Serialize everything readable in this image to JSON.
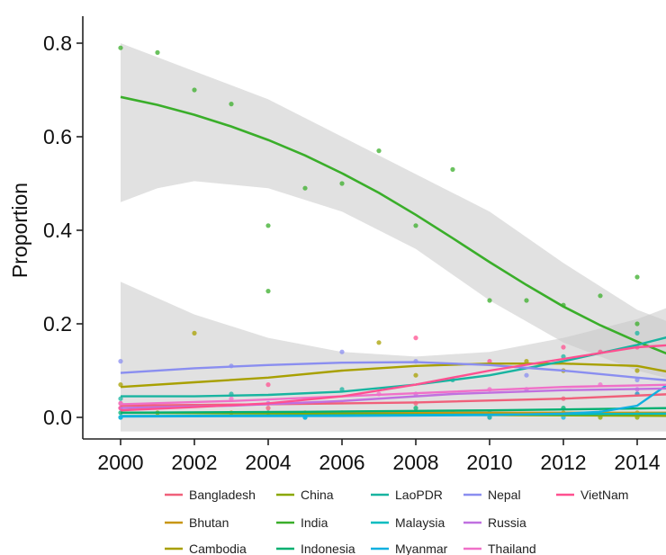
{
  "chart_data": {
    "type": "scatter",
    "title": "",
    "xlabel": "",
    "ylabel": "Proportion",
    "xlim": [
      1999.0,
      2015.0
    ],
    "ylim": [
      -0.05,
      0.86
    ],
    "x_ticks": [
      2000,
      2002,
      2004,
      2006,
      2008,
      2010,
      2012,
      2014
    ],
    "y_ticks": [
      0.0,
      0.2,
      0.4,
      0.6,
      0.8
    ],
    "y_tick_labels": [
      "0.0",
      "0.2",
      "0.4",
      "0.6",
      "0.8"
    ],
    "grid": false,
    "legend_position": "bottom",
    "smoothing": "loess with confidence band",
    "series": [
      {
        "name": "Bangladesh",
        "color": "#f0607a",
        "points": [
          [
            2000,
            0.03
          ],
          [
            2004,
            0.02
          ],
          [
            2008,
            0.03
          ],
          [
            2012,
            0.04
          ],
          [
            2014,
            0.05
          ]
        ],
        "fit": [
          [
            2000,
            0.025
          ],
          [
            2004,
            0.028
          ],
          [
            2008,
            0.032
          ],
          [
            2012,
            0.04
          ],
          [
            2015,
            0.05
          ]
        ]
      },
      {
        "name": "Bhutan",
        "color": "#c89612",
        "points": [
          [
            2003,
            0.01
          ],
          [
            2006,
            0.01
          ],
          [
            2009,
            0.01
          ],
          [
            2012,
            0.01
          ],
          [
            2014,
            0.01
          ]
        ],
        "fit": [
          [
            2000,
            0.01
          ],
          [
            2005,
            0.01
          ],
          [
            2010,
            0.01
          ],
          [
            2015,
            0.01
          ]
        ]
      },
      {
        "name": "Cambodia",
        "color": "#a8a000",
        "points": [
          [
            2000,
            0.07
          ],
          [
            2002,
            0.18
          ],
          [
            2007,
            0.16
          ],
          [
            2008,
            0.09
          ],
          [
            2011,
            0.12
          ],
          [
            2012,
            0.1
          ],
          [
            2014,
            0.1
          ]
        ],
        "fit": [
          [
            2000,
            0.065
          ],
          [
            2002,
            0.075
          ],
          [
            2004,
            0.085
          ],
          [
            2006,
            0.1
          ],
          [
            2008,
            0.11
          ],
          [
            2010,
            0.115
          ],
          [
            2012,
            0.115
          ],
          [
            2014,
            0.11
          ],
          [
            2015,
            0.095
          ]
        ]
      },
      {
        "name": "China",
        "color": "#8aa800",
        "points": [
          [
            2001,
            0.01
          ],
          [
            2005,
            0.01
          ],
          [
            2010,
            0.0
          ],
          [
            2013,
            0.0
          ],
          [
            2014,
            0.0
          ]
        ],
        "fit": [
          [
            2000,
            0.01
          ],
          [
            2005,
            0.008
          ],
          [
            2010,
            0.005
          ],
          [
            2015,
            0.003
          ]
        ]
      },
      {
        "name": "India",
        "color": "#3aae2a",
        "points": [
          [
            2000,
            0.79
          ],
          [
            2001,
            0.78
          ],
          [
            2002,
            0.7
          ],
          [
            2003,
            0.67
          ],
          [
            2004,
            0.41
          ],
          [
            2004,
            0.27
          ],
          [
            2005,
            0.49
          ],
          [
            2006,
            0.5
          ],
          [
            2007,
            0.57
          ],
          [
            2008,
            0.41
          ],
          [
            2009,
            0.53
          ],
          [
            2010,
            0.25
          ],
          [
            2011,
            0.25
          ],
          [
            2012,
            0.24
          ],
          [
            2013,
            0.26
          ],
          [
            2014,
            0.3
          ],
          [
            2014,
            0.2
          ]
        ],
        "fit": [
          [
            2000,
            0.685
          ],
          [
            2001,
            0.668
          ],
          [
            2002,
            0.647
          ],
          [
            2003,
            0.622
          ],
          [
            2004,
            0.593
          ],
          [
            2005,
            0.56
          ],
          [
            2006,
            0.522
          ],
          [
            2007,
            0.48
          ],
          [
            2008,
            0.433
          ],
          [
            2009,
            0.383
          ],
          [
            2010,
            0.332
          ],
          [
            2011,
            0.283
          ],
          [
            2012,
            0.237
          ],
          [
            2013,
            0.197
          ],
          [
            2014,
            0.162
          ],
          [
            2015,
            0.13
          ]
        ]
      },
      {
        "name": "Indonesia",
        "color": "#00b070",
        "points": [
          [
            2000,
            0.01
          ],
          [
            2004,
            0.01
          ],
          [
            2008,
            0.02
          ],
          [
            2012,
            0.02
          ]
        ],
        "fit": [
          [
            2000,
            0.01
          ],
          [
            2005,
            0.012
          ],
          [
            2010,
            0.015
          ],
          [
            2015,
            0.02
          ]
        ]
      },
      {
        "name": "LaoPDR",
        "color": "#18b4a0",
        "points": [
          [
            2000,
            0.04
          ],
          [
            2003,
            0.05
          ],
          [
            2006,
            0.06
          ],
          [
            2009,
            0.08
          ],
          [
            2012,
            0.13
          ],
          [
            2014,
            0.18
          ]
        ],
        "fit": [
          [
            2000,
            0.045
          ],
          [
            2002,
            0.045
          ],
          [
            2004,
            0.048
          ],
          [
            2006,
            0.055
          ],
          [
            2008,
            0.07
          ],
          [
            2010,
            0.09
          ],
          [
            2012,
            0.12
          ],
          [
            2014,
            0.155
          ],
          [
            2015,
            0.175
          ]
        ]
      },
      {
        "name": "Malaysia",
        "color": "#00bcc0",
        "points": [
          [
            2000,
            0.0
          ],
          [
            2005,
            0.0
          ],
          [
            2010,
            0.01
          ],
          [
            2013,
            0.01
          ]
        ],
        "fit": [
          [
            2000,
            0.003
          ],
          [
            2005,
            0.004
          ],
          [
            2010,
            0.006
          ],
          [
            2015,
            0.008
          ]
        ]
      },
      {
        "name": "Myanmar",
        "color": "#10b0e0",
        "points": [
          [
            2000,
            0.0
          ],
          [
            2005,
            0.0
          ],
          [
            2010,
            0.0
          ],
          [
            2012,
            0.0
          ],
          [
            2014,
            0.05
          ]
        ],
        "fit": [
          [
            2000,
            0.002
          ],
          [
            2006,
            0.003
          ],
          [
            2010,
            0.005
          ],
          [
            2012,
            0.008
          ],
          [
            2013,
            0.012
          ],
          [
            2014,
            0.025
          ],
          [
            2015,
            0.08
          ]
        ]
      },
      {
        "name": "Nepal",
        "color": "#8a8ef0",
        "points": [
          [
            2000,
            0.12
          ],
          [
            2003,
            0.11
          ],
          [
            2006,
            0.14
          ],
          [
            2008,
            0.12
          ],
          [
            2011,
            0.09
          ],
          [
            2014,
            0.08
          ]
        ],
        "fit": [
          [
            2000,
            0.095
          ],
          [
            2002,
            0.105
          ],
          [
            2004,
            0.112
          ],
          [
            2006,
            0.117
          ],
          [
            2008,
            0.118
          ],
          [
            2010,
            0.112
          ],
          [
            2012,
            0.1
          ],
          [
            2014,
            0.085
          ],
          [
            2015,
            0.078
          ]
        ]
      },
      {
        "name": "Russia",
        "color": "#c070e0",
        "points": [
          [
            2000,
            0.02
          ],
          [
            2004,
            0.03
          ],
          [
            2008,
            0.05
          ],
          [
            2011,
            0.06
          ],
          [
            2014,
            0.06
          ]
        ],
        "fit": [
          [
            2000,
            0.02
          ],
          [
            2003,
            0.025
          ],
          [
            2006,
            0.035
          ],
          [
            2009,
            0.05
          ],
          [
            2012,
            0.058
          ],
          [
            2015,
            0.062
          ]
        ]
      },
      {
        "name": "Thailand",
        "color": "#f070c8",
        "points": [
          [
            2000,
            0.03
          ],
          [
            2003,
            0.04
          ],
          [
            2007,
            0.05
          ],
          [
            2010,
            0.06
          ],
          [
            2013,
            0.07
          ]
        ],
        "fit": [
          [
            2000,
            0.028
          ],
          [
            2003,
            0.035
          ],
          [
            2006,
            0.045
          ],
          [
            2009,
            0.055
          ],
          [
            2012,
            0.065
          ],
          [
            2015,
            0.07
          ]
        ]
      },
      {
        "name": "VietNam",
        "color": "#ff5090",
        "points": [
          [
            2000,
            0.02
          ],
          [
            2004,
            0.07
          ],
          [
            2008,
            0.17
          ],
          [
            2010,
            0.12
          ],
          [
            2012,
            0.15
          ],
          [
            2013,
            0.14
          ],
          [
            2014,
            0.15
          ]
        ],
        "fit": [
          [
            2000,
            0.015
          ],
          [
            2002,
            0.022
          ],
          [
            2004,
            0.03
          ],
          [
            2006,
            0.045
          ],
          [
            2008,
            0.07
          ],
          [
            2010,
            0.1
          ],
          [
            2012,
            0.125
          ],
          [
            2014,
            0.15
          ],
          [
            2015,
            0.155
          ]
        ]
      }
    ],
    "bands": [
      {
        "name": "India",
        "upper": [
          [
            2000,
            0.8
          ],
          [
            2002,
            0.74
          ],
          [
            2004,
            0.68
          ],
          [
            2006,
            0.6
          ],
          [
            2008,
            0.52
          ],
          [
            2010,
            0.44
          ],
          [
            2012,
            0.33
          ],
          [
            2014,
            0.23
          ],
          [
            2015,
            0.2
          ]
        ],
        "lower": [
          [
            2000,
            0.46
          ],
          [
            2001,
            0.49
          ],
          [
            2002,
            0.505
          ],
          [
            2004,
            0.49
          ],
          [
            2006,
            0.44
          ],
          [
            2008,
            0.36
          ],
          [
            2010,
            0.25
          ],
          [
            2012,
            0.16
          ],
          [
            2014,
            0.1
          ],
          [
            2015,
            0.08
          ]
        ]
      },
      {
        "name": "lower-band",
        "upper": [
          [
            2000,
            0.29
          ],
          [
            2002,
            0.22
          ],
          [
            2004,
            0.17
          ],
          [
            2006,
            0.14
          ],
          [
            2008,
            0.13
          ],
          [
            2010,
            0.14
          ],
          [
            2012,
            0.17
          ],
          [
            2014,
            0.21
          ],
          [
            2015,
            0.24
          ]
        ],
        "lower": [
          [
            2000,
            -0.03
          ],
          [
            2004,
            -0.03
          ],
          [
            2008,
            -0.03
          ],
          [
            2012,
            -0.03
          ],
          [
            2015,
            -0.03
          ]
        ]
      }
    ]
  }
}
